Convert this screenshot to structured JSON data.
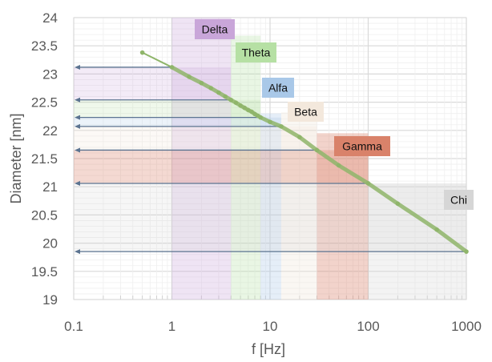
{
  "chart_data": {
    "type": "line",
    "title": "",
    "xlabel": "f [Hz]",
    "ylabel": "Diameter [nm]",
    "xscale": "log",
    "xlim": [
      0.1,
      1000
    ],
    "ylim": [
      19,
      24
    ],
    "grid": true,
    "x_ticks": [
      "0.1",
      "1",
      "10",
      "100",
      "1000"
    ],
    "y_ticks": [
      "19",
      "19.5",
      "20",
      "20.5",
      "21",
      "21.5",
      "22",
      "22.5",
      "23",
      "23.5",
      "24"
    ],
    "series": [
      {
        "name": "Diameter",
        "color": "#8fb56a",
        "points": [
          [
            0.5,
            23.38
          ],
          [
            1,
            23.12
          ],
          [
            1.5,
            22.95
          ],
          [
            2,
            22.84
          ],
          [
            2.5,
            22.75
          ],
          [
            3,
            22.67
          ],
          [
            3.5,
            22.6
          ],
          [
            4,
            22.54
          ],
          [
            4.5,
            22.49
          ],
          [
            5,
            22.44
          ],
          [
            5.5,
            22.4
          ],
          [
            6,
            22.36
          ],
          [
            6.5,
            22.33
          ],
          [
            7,
            22.29
          ],
          [
            7.5,
            22.26
          ],
          [
            8,
            22.23
          ],
          [
            10,
            22.15
          ],
          [
            13,
            22.07
          ],
          [
            20,
            21.88
          ],
          [
            30,
            21.65
          ],
          [
            50,
            21.38
          ],
          [
            100,
            21.06
          ],
          [
            200,
            20.7
          ],
          [
            500,
            20.24
          ],
          [
            1000,
            19.85
          ]
        ]
      }
    ],
    "bands": [
      {
        "name": "Delta",
        "f_range": [
          1,
          4
        ],
        "d_range": [
          22.54,
          23.12
        ],
        "color": "#c9a6d9"
      },
      {
        "name": "Theta",
        "f_range": [
          4,
          8
        ],
        "d_range": [
          22.23,
          22.54
        ],
        "color": "#b6e0a4"
      },
      {
        "name": "Alfa",
        "f_range": [
          8,
          13
        ],
        "d_range": [
          22.07,
          22.23
        ],
        "color": "#a9c8e8"
      },
      {
        "name": "Beta",
        "f_range": [
          13,
          30
        ],
        "d_range": [
          21.65,
          22.07
        ],
        "color": "#f0e4d8"
      },
      {
        "name": "Gamma",
        "f_range": [
          30,
          100
        ],
        "d_range": [
          21.06,
          21.65
        ],
        "color": "#d9826a"
      },
      {
        "name": "Chi",
        "f_range": [
          100,
          1000
        ],
        "d_range": [
          19.85,
          21.06
        ],
        "color": "#d6d6d6"
      }
    ],
    "reference_lines_d": [
      23.12,
      22.54,
      22.23,
      22.07,
      21.65,
      21.06,
      19.85
    ]
  }
}
